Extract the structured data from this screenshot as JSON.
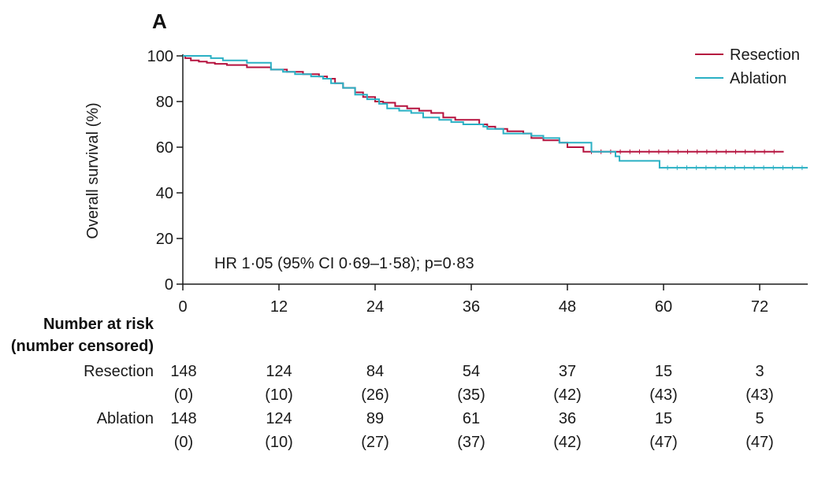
{
  "panel_label": "A",
  "annotation": "HR 1·05 (95% CI 0·69–1·58); p=0·83",
  "colors": {
    "resection": "#b5123e",
    "ablation": "#2ab0c4",
    "axis": "#1a1a1a"
  },
  "chart_data": {
    "type": "line",
    "ylabel": "Overall survival (%)",
    "xlabel": "",
    "xlim": [
      0,
      78
    ],
    "ylim": [
      0,
      100
    ],
    "xticks": [
      0,
      12,
      24,
      36,
      48,
      60,
      72
    ],
    "xtick_labels": [
      "0",
      "12",
      "24",
      "36",
      "48",
      "60",
      "72"
    ],
    "yticks": [
      0,
      20,
      40,
      60,
      80,
      100
    ],
    "ytick_labels": [
      "0",
      "20",
      "40",
      "60",
      "80",
      "100"
    ],
    "legend_position": "top-right",
    "series": [
      {
        "name": "Resection",
        "step": true,
        "x": [
          0,
          0.3,
          1.0,
          2.0,
          3.0,
          4.0,
          5.5,
          8.0,
          11.0,
          13.0,
          15.0,
          17.0,
          18.0,
          19.0,
          20.0,
          21.5,
          22.5,
          24.0,
          25.0,
          26.5,
          28.0,
          29.5,
          31.0,
          32.5,
          34.0,
          37.0,
          38.0,
          39.0,
          40.5,
          42.5,
          43.5,
          45.0,
          47.0,
          48.0,
          50.0,
          75.0
        ],
        "y": [
          100,
          99,
          98,
          97.5,
          97,
          96.5,
          96,
          95,
          94,
          93,
          92,
          91,
          90,
          88,
          86,
          84,
          82,
          80,
          79.5,
          78,
          77,
          76,
          75,
          73,
          72,
          70,
          69,
          68,
          67,
          66,
          64,
          63,
          62,
          60,
          58,
          58
        ]
      },
      {
        "name": "Ablation",
        "step": true,
        "x": [
          0,
          3.5,
          5.0,
          8.0,
          11.0,
          12.5,
          14.0,
          16.0,
          17.5,
          18.5,
          20.0,
          21.5,
          23.0,
          24.5,
          25.5,
          27.0,
          28.5,
          30.0,
          32.0,
          33.5,
          35.0,
          37.5,
          38.0,
          40.0,
          43.5,
          45.0,
          47.0,
          51.0,
          54.0,
          54.5,
          59.5,
          78.0
        ],
        "y": [
          100,
          99,
          98,
          97,
          94,
          93,
          92,
          91,
          90,
          88,
          86,
          83,
          81,
          79,
          77,
          76,
          75,
          73,
          72,
          71,
          70,
          69,
          68,
          66,
          65,
          64,
          62,
          58,
          56,
          54,
          51,
          51
        ]
      }
    ],
    "censor_ticks": true
  },
  "risk_table": {
    "title_line1": "Number at risk",
    "title_line2": "(number censored)",
    "times": [
      0,
      12,
      24,
      36,
      48,
      60,
      72
    ],
    "rows": [
      {
        "label": "Resection",
        "at_risk": [
          "148",
          "124",
          "84",
          "54",
          "37",
          "15",
          "3"
        ],
        "censored": [
          "(0)",
          "(10)",
          "(26)",
          "(35)",
          "(42)",
          "(43)",
          "(43)"
        ]
      },
      {
        "label": "Ablation",
        "at_risk": [
          "148",
          "124",
          "89",
          "61",
          "36",
          "15",
          "5"
        ],
        "censored": [
          "(0)",
          "(10)",
          "(27)",
          "(37)",
          "(42)",
          "(47)",
          "(47)"
        ]
      }
    ]
  }
}
